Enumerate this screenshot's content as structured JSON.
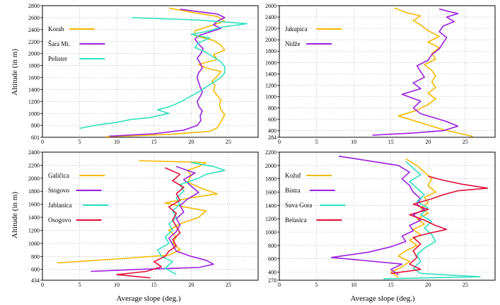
{
  "figure": {
    "ylabel": "Altitude (in m)",
    "xlabel": "Average slope (deg.)"
  },
  "chart_data": [
    {
      "type": "line",
      "xlim": [
        0,
        29
      ],
      "ylim": [
        601,
        2800
      ],
      "xticks": [
        "0",
        "5",
        "10",
        "15",
        "20",
        "25"
      ],
      "yticks": [
        "601",
        "800",
        "1000",
        "1200",
        "1400",
        "1600",
        "1800",
        "2000",
        "2200",
        "2400",
        "2600",
        "2800"
      ],
      "ylabel": "Altitude (in m)",
      "xlabel": "",
      "grid": true,
      "legend": "top-left",
      "series": [
        {
          "name": "Korab",
          "color": "#f5b800",
          "x": [
            8.5,
            17.0,
            22.5,
            23.5,
            23.8,
            24.2,
            24.5,
            24.0,
            23.8,
            24.0,
            23.5,
            23.0,
            23.2,
            22.8,
            23.5,
            24.0,
            22.0,
            21.0,
            23.5,
            23.0,
            24.5,
            24.0,
            23.0,
            20.5,
            20.5,
            22.5,
            24.5,
            23.5,
            20.5,
            17.0
          ],
          "y": [
            610,
            650,
            700,
            760,
            820,
            900,
            980,
            1060,
            1140,
            1220,
            1300,
            1380,
            1460,
            1540,
            1620,
            1700,
            1760,
            1820,
            1900,
            1980,
            2060,
            2140,
            2220,
            2300,
            2380,
            2460,
            2540,
            2620,
            2680,
            2760
          ]
        },
        {
          "name": "Šara Mt.",
          "color": "#9b1fe0",
          "x": [
            9.0,
            15.0,
            19.0,
            20.8,
            21.3,
            21.2,
            21.5,
            21.0,
            20.8,
            21.2,
            21.5,
            21.2,
            21.0,
            20.8,
            21.0,
            21.5,
            21.2,
            20.8,
            21.3,
            21.6,
            21.0,
            20.5,
            21.0,
            22.5,
            24.0,
            23.0,
            23.5,
            24.5,
            23.5,
            18.5
          ],
          "y": [
            620,
            660,
            720,
            800,
            880,
            960,
            1040,
            1120,
            1200,
            1280,
            1360,
            1440,
            1520,
            1600,
            1680,
            1760,
            1840,
            1920,
            2000,
            2080,
            2160,
            2240,
            2300,
            2360,
            2420,
            2480,
            2540,
            2600,
            2660,
            2740
          ]
        },
        {
          "name": "Pelister",
          "color": "#2ee0c0",
          "x": [
            5.0,
            7.0,
            10.0,
            12.0,
            14.5,
            15.5,
            17.0,
            15.5,
            17.0,
            18.0,
            19.0,
            20.0,
            21.0,
            22.0,
            23.0,
            24.0,
            24.5,
            24.5,
            24.0,
            23.0,
            22.0,
            20.5,
            21.0,
            22.5,
            20.0,
            22.5,
            24.0,
            27.5,
            21.0,
            12.0
          ],
          "y": [
            750,
            800,
            850,
            900,
            930,
            960,
            1000,
            1060,
            1110,
            1160,
            1220,
            1290,
            1360,
            1440,
            1520,
            1600,
            1680,
            1780,
            1860,
            1940,
            2020,
            2100,
            2180,
            2260,
            2320,
            2380,
            2440,
            2500,
            2560,
            2600
          ]
        }
      ]
    },
    {
      "type": "line",
      "xlim": [
        0,
        29
      ],
      "ylim": [
        284,
        2600
      ],
      "xticks": [
        "0",
        "5",
        "10",
        "15",
        "20",
        "25"
      ],
      "yticks": [
        "284",
        "400",
        "600",
        "800",
        "1000",
        "1200",
        "1400",
        "1600",
        "1800",
        "2000",
        "2200",
        "2400",
        "2600"
      ],
      "ylabel": "",
      "xlabel": "",
      "grid": true,
      "legend": "top-left",
      "series": [
        {
          "name": "Jakupica",
          "color": "#f5b800",
          "x": [
            26.0,
            24.0,
            22.0,
            20.0,
            18.0,
            16.0,
            18.5,
            20.0,
            21.0,
            20.0,
            21.0,
            20.5,
            21.0,
            20.5,
            19.5,
            21.0,
            20.5,
            21.5,
            20.0,
            21.5,
            20.0,
            19.0,
            18.0,
            19.0,
            17.0,
            15.5
          ],
          "y": [
            300,
            360,
            420,
            500,
            580,
            660,
            760,
            860,
            960,
            1060,
            1160,
            1260,
            1360,
            1460,
            1560,
            1660,
            1760,
            1860,
            1960,
            2060,
            2160,
            2260,
            2340,
            2420,
            2480,
            2560
          ]
        },
        {
          "name": "Nidže",
          "color": "#9b1fe0",
          "x": [
            12.5,
            18.0,
            22.0,
            24.0,
            22.5,
            21.0,
            19.0,
            18.0,
            19.0,
            16.5,
            19.0,
            18.0,
            19.5,
            19.0,
            18.5,
            20.0,
            20.5,
            21.5,
            22.0,
            22.5,
            21.5,
            22.0,
            23.5,
            22.5,
            24.0,
            21.5
          ],
          "y": [
            320,
            360,
            400,
            480,
            560,
            620,
            700,
            800,
            920,
            1040,
            1140,
            1240,
            1340,
            1440,
            1540,
            1640,
            1740,
            1840,
            1940,
            2040,
            2140,
            2240,
            2320,
            2400,
            2460,
            2540
          ]
        }
      ]
    },
    {
      "type": "line",
      "xlim": [
        0,
        29
      ],
      "ylim": [
        434,
        2400
      ],
      "xticks": [
        "0",
        "5",
        "10",
        "15",
        "20",
        "25"
      ],
      "yticks": [
        "434",
        "600",
        "800",
        "1000",
        "1200",
        "1400",
        "1600",
        "1800",
        "2000",
        "2200",
        "2400"
      ],
      "ylabel": "Altitude (in m)",
      "xlabel": "Average slope (deg.)",
      "grid": true,
      "legend": "top-left",
      "series": [
        {
          "name": "Galičica",
          "color": "#f5b800",
          "x": [
            2.0,
            10.0,
            17.0,
            18.5,
            17.5,
            18.0,
            17.0,
            18.5,
            21.0,
            22.0,
            19.0,
            16.5,
            20.0,
            23.5,
            21.5,
            19.5,
            20.0,
            19.5,
            21.0,
            22.0,
            13.0
          ],
          "y": [
            700,
            760,
            820,
            900,
            1000,
            1100,
            1200,
            1300,
            1400,
            1500,
            1560,
            1620,
            1700,
            1760,
            1840,
            1940,
            2040,
            2120,
            2180,
            2240,
            2270
          ]
        },
        {
          "name": "Stogovo",
          "color": "#9b1fe0",
          "x": [
            6.5,
            13.0,
            21.0,
            23.0,
            22.0,
            20.0,
            18.0,
            17.5,
            17.0,
            18.0,
            18.5,
            18.0,
            19.0,
            18.5,
            19.5,
            21.0,
            20.0,
            19.0,
            20.5,
            18.0
          ],
          "y": [
            570,
            600,
            630,
            680,
            740,
            800,
            880,
            980,
            1080,
            1180,
            1280,
            1380,
            1480,
            1580,
            1680,
            1780,
            1880,
            1980,
            2080,
            2180
          ]
        },
        {
          "name": "Jablanica",
          "color": "#2ee0c0",
          "x": [
            18.0,
            16.5,
            17.5,
            16.0,
            15.5,
            17.0,
            16.5,
            17.5,
            17.0,
            18.0,
            17.5,
            18.5,
            18.0,
            19.0,
            18.5,
            21.0,
            22.0,
            24.5,
            23.0,
            20.0
          ],
          "y": [
            520,
            620,
            720,
            800,
            900,
            1000,
            1100,
            1200,
            1300,
            1400,
            1500,
            1600,
            1700,
            1800,
            1900,
            2000,
            2060,
            2120,
            2180,
            2240
          ]
        },
        {
          "name": "Osogovo",
          "color": "#e0103a",
          "x": [
            14.5,
            10.0,
            14.0,
            16.0,
            15.0,
            16.5,
            17.0,
            18.0,
            17.5,
            18.5,
            18.0,
            17.5,
            18.0,
            17.0,
            18.5,
            18.0,
            19.0,
            17.5,
            18.5,
            16.5
          ],
          "y": [
            470,
            520,
            570,
            640,
            720,
            800,
            880,
            960,
            1060,
            1160,
            1260,
            1360,
            1460,
            1560,
            1660,
            1760,
            1860,
            1960,
            2060,
            2160
          ]
        }
      ]
    },
    {
      "type": "line",
      "xlim": [
        0,
        29
      ],
      "ylim": [
        278,
        2200
      ],
      "xticks": [
        "0",
        "5",
        "10",
        "15",
        "20",
        "25"
      ],
      "yticks": [
        "278",
        "400",
        "600",
        "800",
        "1000",
        "1200",
        "1400",
        "1600",
        "1800",
        "2000",
        "2200"
      ],
      "ylabel": "",
      "xlabel": "Average slope (deg.)",
      "grid": true,
      "legend": "top-left",
      "series": [
        {
          "name": "Kožuf",
          "color": "#f5b800",
          "x": [
            16.0,
            15.0,
            16.5,
            17.5,
            16.0,
            17.0,
            18.5,
            17.5,
            19.0,
            18.0,
            19.5,
            18.5,
            20.0,
            19.0,
            20.0,
            19.5,
            21.0,
            20.0,
            20.5,
            19.5,
            18.5,
            17.0
          ],
          "y": [
            320,
            400,
            480,
            560,
            640,
            720,
            800,
            880,
            960,
            1040,
            1120,
            1200,
            1280,
            1360,
            1440,
            1520,
            1600,
            1700,
            1800,
            1900,
            2000,
            2100
          ]
        },
        {
          "name": "Bistra",
          "color": "#9b1fe0",
          "x": [
            16.0,
            15.0,
            16.5,
            7.0,
            12.0,
            15.0,
            17.0,
            16.5,
            18.0,
            17.5,
            19.0,
            18.0,
            19.5,
            18.5,
            19.0,
            18.0,
            17.5,
            16.5,
            17.5,
            16.0,
            8.0
          ],
          "y": [
            360,
            440,
            520,
            620,
            700,
            780,
            860,
            940,
            1020,
            1100,
            1180,
            1260,
            1340,
            1420,
            1500,
            1600,
            1700,
            1800,
            1900,
            2000,
            2140
          ]
        },
        {
          "name": "Suva Gora",
          "color": "#2ee0c0",
          "x": [
            14.0,
            27.0,
            19.0,
            18.0,
            19.0,
            18.5,
            19.5,
            21.0,
            20.5,
            19.5,
            20.5,
            19.0,
            20.0,
            18.5,
            19.5,
            18.5,
            17.5,
            19.0,
            18.0,
            17.0
          ],
          "y": [
            300,
            330,
            380,
            460,
            560,
            660,
            760,
            860,
            960,
            1060,
            1160,
            1260,
            1360,
            1460,
            1560,
            1660,
            1760,
            1860,
            1960,
            2060
          ]
        },
        {
          "name": "Belasica",
          "color": "#e0103a",
          "x": [
            15.0,
            19.0,
            17.5,
            18.5,
            18.0,
            19.0,
            18.0,
            20.0,
            22.5,
            21.0,
            19.5,
            17.5,
            20.0,
            18.0,
            20.5,
            22.0,
            24.0,
            28.0,
            24.5,
            22.0,
            20.0
          ],
          "y": [
            380,
            440,
            520,
            620,
            720,
            820,
            920,
            980,
            1040,
            1100,
            1180,
            1260,
            1340,
            1420,
            1500,
            1560,
            1620,
            1660,
            1720,
            1780,
            1840
          ]
        }
      ]
    }
  ]
}
